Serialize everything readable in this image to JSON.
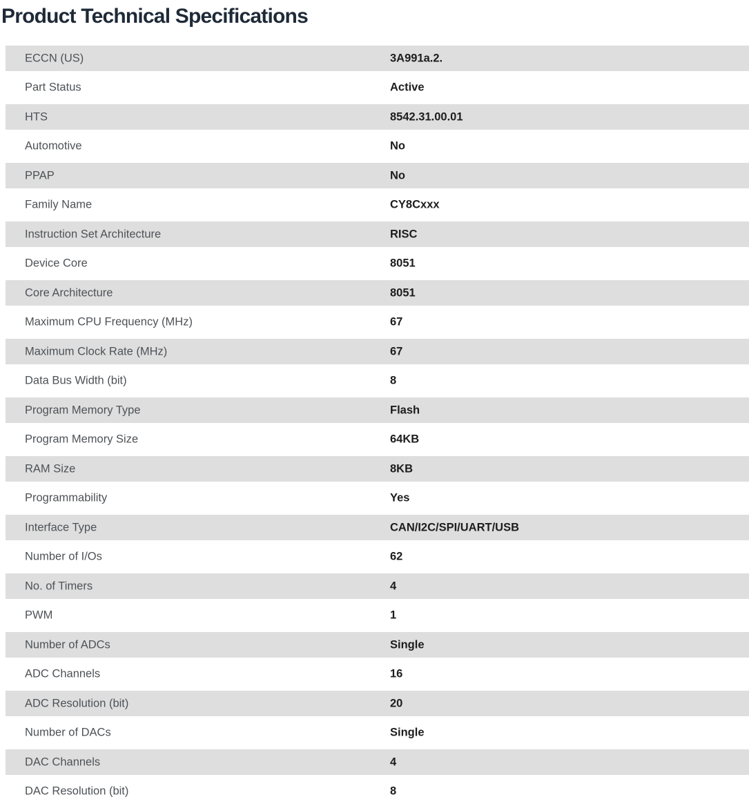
{
  "page": {
    "title": "Product Technical Specifications"
  },
  "colors": {
    "title_text": "#1f2a38",
    "row_alt_bg": "#dedede",
    "row_bg": "#ffffff",
    "label_text": "#4e5256",
    "value_text": "#1d1d1d"
  },
  "specs": {
    "rows": [
      {
        "label": "ECCN (US)",
        "value": "3A991a.2."
      },
      {
        "label": "Part Status",
        "value": "Active"
      },
      {
        "label": "HTS",
        "value": "8542.31.00.01"
      },
      {
        "label": "Automotive",
        "value": "No"
      },
      {
        "label": "PPAP",
        "value": "No"
      },
      {
        "label": "Family Name",
        "value": "CY8Cxxx"
      },
      {
        "label": "Instruction Set Architecture",
        "value": "RISC"
      },
      {
        "label": "Device Core",
        "value": "8051"
      },
      {
        "label": "Core Architecture",
        "value": "8051"
      },
      {
        "label": "Maximum CPU Frequency (MHz)",
        "value": "67"
      },
      {
        "label": "Maximum Clock Rate (MHz)",
        "value": "67"
      },
      {
        "label": "Data Bus Width (bit)",
        "value": "8"
      },
      {
        "label": "Program Memory Type",
        "value": "Flash"
      },
      {
        "label": "Program Memory Size",
        "value": "64KB"
      },
      {
        "label": "RAM Size",
        "value": "8KB"
      },
      {
        "label": "Programmability",
        "value": "Yes"
      },
      {
        "label": "Interface Type",
        "value": "CAN/I2C/SPI/UART/USB"
      },
      {
        "label": "Number of I/Os",
        "value": "62"
      },
      {
        "label": "No. of Timers",
        "value": "4"
      },
      {
        "label": "PWM",
        "value": "1"
      },
      {
        "label": "Number of ADCs",
        "value": "Single"
      },
      {
        "label": "ADC Channels",
        "value": "16"
      },
      {
        "label": "ADC Resolution (bit)",
        "value": "20"
      },
      {
        "label": "Number of DACs",
        "value": "Single"
      },
      {
        "label": "DAC Channels",
        "value": "4"
      },
      {
        "label": "DAC Resolution (bit)",
        "value": "8"
      }
    ]
  }
}
